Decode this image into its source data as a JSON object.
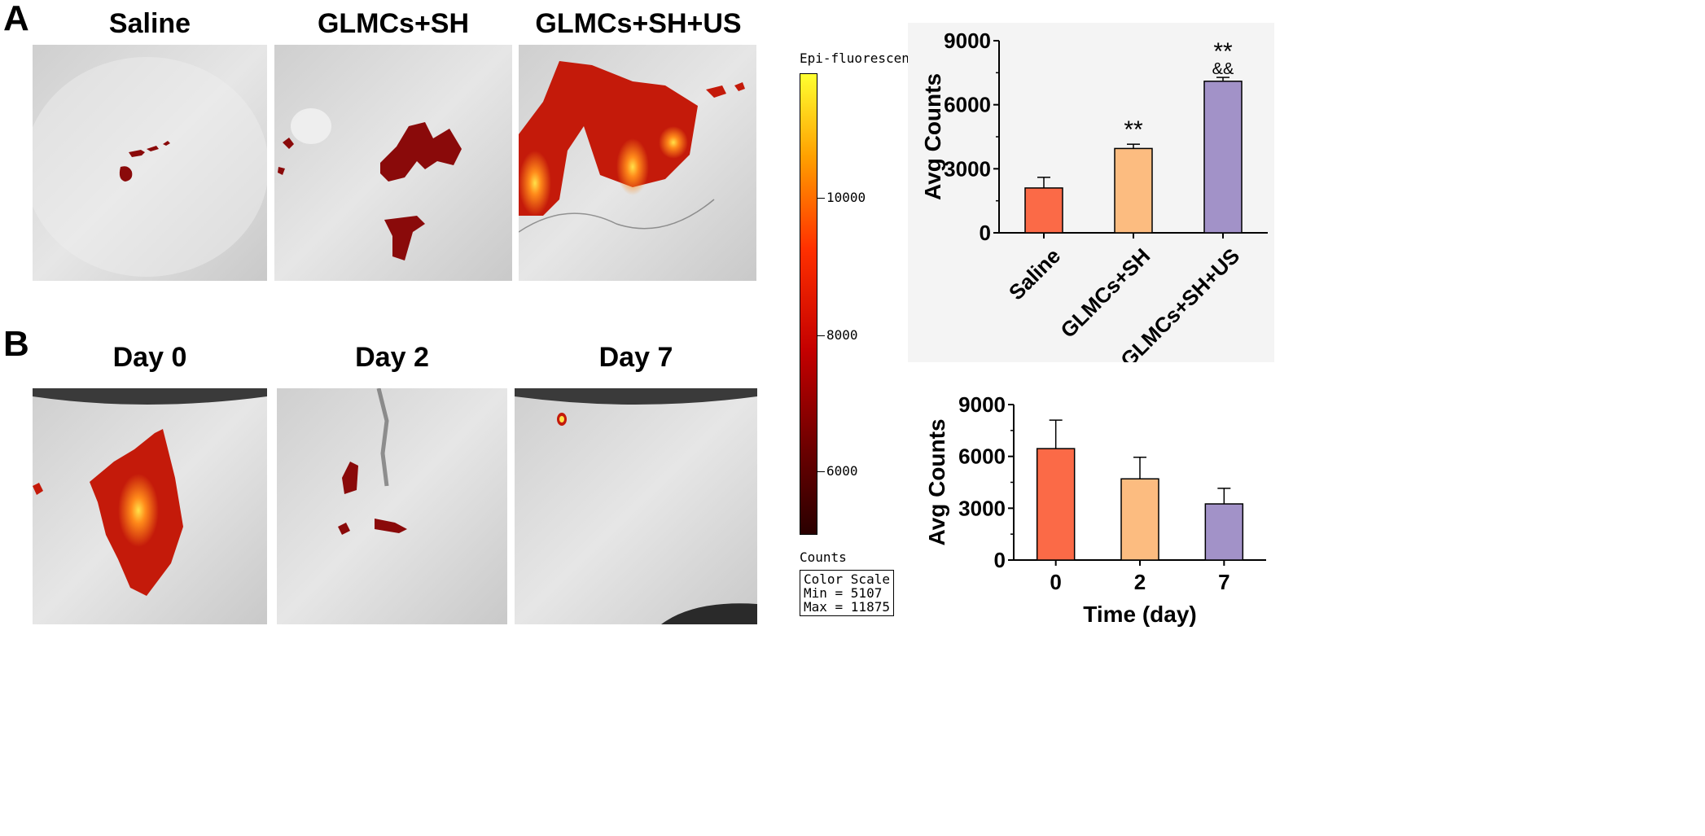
{
  "panels": {
    "a": {
      "letter": "A",
      "titles": [
        "Saline",
        "GLMCs+SH",
        "GLMCs+SH+US"
      ]
    },
    "b": {
      "letter": "B",
      "titles": [
        "Day 0",
        "Day 2",
        "Day 7"
      ]
    }
  },
  "colorbar": {
    "title": "Epi-fluorescen",
    "ticks": [
      "10000",
      "8000",
      "6000"
    ],
    "units": "Counts",
    "scale_lines": [
      "Color Scale",
      "Min = 5107",
      "Max = 11875"
    ]
  },
  "chart_data": [
    {
      "type": "bar",
      "categories": [
        "Saline",
        "GLMCs+SH",
        "GLMCs+SH+US"
      ],
      "values": [
        2100,
        3950,
        7100
      ],
      "errors": [
        500,
        200,
        180
      ],
      "colors": [
        "#fb6a47",
        "#fcbc80",
        "#a292c8"
      ],
      "annotations": [
        [
          "",
          ""
        ],
        [
          "**",
          ""
        ],
        [
          "**",
          "&&"
        ]
      ],
      "ylabel": "Avg Counts",
      "xlabel": "",
      "ylim": [
        0,
        9000
      ],
      "yticks": [
        "0",
        "3000",
        "6000",
        "9000"
      ]
    },
    {
      "type": "bar",
      "categories": [
        "0",
        "2",
        "7"
      ],
      "values": [
        6450,
        4700,
        3250
      ],
      "errors": [
        1650,
        1250,
        900
      ],
      "colors": [
        "#fb6a47",
        "#fcbc80",
        "#a292c8"
      ],
      "annotations": [],
      "ylabel": "Avg Counts",
      "xlabel": "Time (day)",
      "ylim": [
        0,
        9000
      ],
      "yticks": [
        "0",
        "3000",
        "6000",
        "9000"
      ]
    }
  ]
}
